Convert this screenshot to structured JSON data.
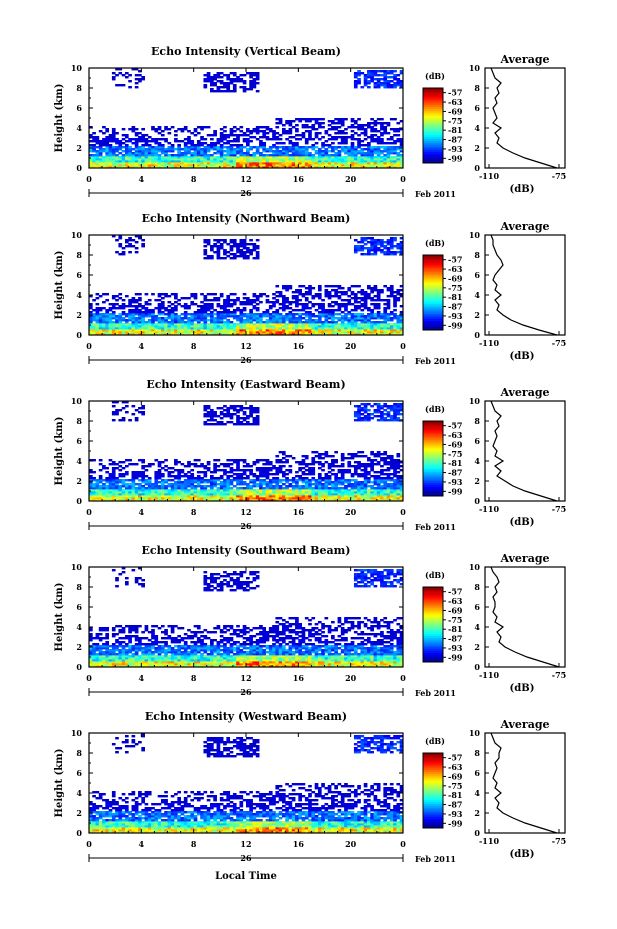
{
  "figure": {
    "x_axis_label": "Local Time",
    "date_label": "Feb 2011",
    "day_label": "26"
  },
  "chart_data": [
    {
      "type": "heatmap",
      "title": "Echo Intensity (Vertical Beam)",
      "xlabel": "Local Time",
      "ylabel": "Height (km)",
      "x_ticks": [
        "0",
        "4",
        "8",
        "12",
        "16",
        "20",
        "0"
      ],
      "y_ticks": [
        "0",
        "2",
        "4",
        "6",
        "8",
        "10"
      ],
      "xlim": [
        0,
        24
      ],
      "ylim": [
        0,
        10
      ],
      "colorbar": {
        "label": "(dB)",
        "ticks": [
          "-57",
          "-63",
          "-69",
          "-75",
          "-81",
          "-87",
          "-93",
          "-99"
        ],
        "range": [
          -102,
          -54
        ]
      },
      "average_profile": {
        "title": "Average",
        "xlabel": "(dB)",
        "x_ticks": [
          "-110",
          "-75"
        ],
        "y_ticks": [
          "0",
          "2",
          "4",
          "6",
          "8",
          "10"
        ],
        "height": [
          0,
          0.5,
          1,
          1.5,
          2,
          2.5,
          3,
          3.5,
          4,
          4.5,
          5,
          5.5,
          6,
          6.5,
          7,
          7.5,
          8,
          8.5,
          9,
          9.5,
          10
        ],
        "value": [
          -76,
          -84,
          -92,
          -98,
          -103,
          -106,
          -105,
          -107,
          -104,
          -108,
          -106,
          -107,
          -108,
          -106,
          -107,
          -105,
          -106,
          -104,
          -107,
          -108,
          -109
        ]
      }
    },
    {
      "type": "heatmap",
      "title": "Echo Intensity (Northward Beam)",
      "xlabel": "Local Time",
      "ylabel": "Height (km)",
      "x_ticks": [
        "0",
        "4",
        "8",
        "12",
        "16",
        "20",
        "0"
      ],
      "y_ticks": [
        "0",
        "2",
        "4",
        "6",
        "8",
        "10"
      ],
      "xlim": [
        0,
        24
      ],
      "ylim": [
        0,
        10
      ],
      "colorbar": {
        "label": "(dB)",
        "ticks": [
          "-57",
          "-63",
          "-69",
          "-75",
          "-81",
          "-87",
          "-93",
          "-99"
        ],
        "range": [
          -102,
          -54
        ]
      },
      "average_profile": {
        "title": "Average",
        "xlabel": "(dB)",
        "x_ticks": [
          "-110",
          "-75"
        ],
        "y_ticks": [
          "0",
          "2",
          "4",
          "6",
          "8",
          "10"
        ],
        "height": [
          0,
          0.5,
          1,
          1.5,
          2,
          2.5,
          3,
          3.5,
          4,
          4.5,
          5,
          5.5,
          6,
          6.5,
          7,
          7.5,
          8,
          8.5,
          9,
          9.5,
          10
        ],
        "value": [
          -76,
          -85,
          -93,
          -99,
          -103,
          -106,
          -105,
          -107,
          -104,
          -107,
          -106,
          -108,
          -107,
          -105,
          -103,
          -104,
          -106,
          -107,
          -108,
          -108,
          -109
        ]
      }
    },
    {
      "type": "heatmap",
      "title": "Echo Intensity (Eastward Beam)",
      "xlabel": "Local Time",
      "ylabel": "Height (km)",
      "x_ticks": [
        "0",
        "4",
        "8",
        "12",
        "16",
        "20",
        "0"
      ],
      "y_ticks": [
        "0",
        "2",
        "4",
        "6",
        "8",
        "10"
      ],
      "xlim": [
        0,
        24
      ],
      "ylim": [
        0,
        10
      ],
      "colorbar": {
        "label": "(dB)",
        "ticks": [
          "-57",
          "-63",
          "-69",
          "-75",
          "-81",
          "-87",
          "-93",
          "-99"
        ],
        "range": [
          -102,
          -54
        ]
      },
      "average_profile": {
        "title": "Average",
        "xlabel": "(dB)",
        "x_ticks": [
          "-110",
          "-75"
        ],
        "y_ticks": [
          "0",
          "2",
          "4",
          "6",
          "8",
          "10"
        ],
        "height": [
          0,
          0.5,
          1,
          1.5,
          2,
          2.5,
          3,
          3.5,
          4,
          4.5,
          5,
          5.5,
          6,
          6.5,
          7,
          7.5,
          8,
          8.5,
          9,
          9.5,
          10
        ],
        "value": [
          -76,
          -84,
          -92,
          -98,
          -102,
          -106,
          -104,
          -107,
          -103,
          -107,
          -106,
          -108,
          -107,
          -106,
          -107,
          -105,
          -106,
          -104,
          -107,
          -108,
          -109
        ]
      }
    },
    {
      "type": "heatmap",
      "title": "Echo Intensity (Southward Beam)",
      "xlabel": "Local Time",
      "ylabel": "Height (km)",
      "x_ticks": [
        "0",
        "4",
        "8",
        "12",
        "16",
        "20",
        "0"
      ],
      "y_ticks": [
        "0",
        "2",
        "4",
        "6",
        "8",
        "10"
      ],
      "xlim": [
        0,
        24
      ],
      "ylim": [
        0,
        10
      ],
      "colorbar": {
        "label": "(dB)",
        "ticks": [
          "-57",
          "-63",
          "-69",
          "-75",
          "-81",
          "-87",
          "-93",
          "-99"
        ],
        "range": [
          -102,
          -54
        ]
      },
      "average_profile": {
        "title": "Average",
        "xlabel": "(dB)",
        "x_ticks": [
          "-110",
          "-75"
        ],
        "y_ticks": [
          "0",
          "2",
          "4",
          "6",
          "8",
          "10"
        ],
        "height": [
          0,
          0.5,
          1,
          1.5,
          2,
          2.5,
          3,
          3.5,
          4,
          4.5,
          5,
          5.5,
          6,
          6.5,
          7,
          7.5,
          8,
          8.5,
          9,
          9.5,
          10
        ],
        "value": [
          -75,
          -83,
          -91,
          -97,
          -102,
          -105,
          -104,
          -106,
          -103,
          -107,
          -106,
          -108,
          -107,
          -107,
          -108,
          -106,
          -107,
          -105,
          -106,
          -108,
          -109
        ]
      }
    },
    {
      "type": "heatmap",
      "title": "Echo Intensity (Westward Beam)",
      "xlabel": "Local Time",
      "ylabel": "Height (km)",
      "x_ticks": [
        "0",
        "4",
        "8",
        "12",
        "16",
        "20",
        "0"
      ],
      "y_ticks": [
        "0",
        "2",
        "4",
        "6",
        "8",
        "10"
      ],
      "xlim": [
        0,
        24
      ],
      "ylim": [
        0,
        10
      ],
      "colorbar": {
        "label": "(dB)",
        "ticks": [
          "-57",
          "-63",
          "-69",
          "-75",
          "-81",
          "-87",
          "-93",
          "-99"
        ],
        "range": [
          -102,
          -54
        ]
      },
      "average_profile": {
        "title": "Average",
        "xlabel": "(dB)",
        "x_ticks": [
          "-110",
          "-75"
        ],
        "y_ticks": [
          "0",
          "2",
          "4",
          "6",
          "8",
          "10"
        ],
        "height": [
          0,
          0.5,
          1,
          1.5,
          2,
          2.5,
          3,
          3.5,
          4,
          4.5,
          5,
          5.5,
          6,
          6.5,
          7,
          7.5,
          8,
          8.5,
          9,
          9.5,
          10
        ],
        "value": [
          -76,
          -84,
          -92,
          -98,
          -103,
          -106,
          -105,
          -107,
          -104,
          -107,
          -106,
          -108,
          -107,
          -106,
          -107,
          -105,
          -105,
          -104,
          -107,
          -108,
          -109
        ]
      }
    }
  ]
}
